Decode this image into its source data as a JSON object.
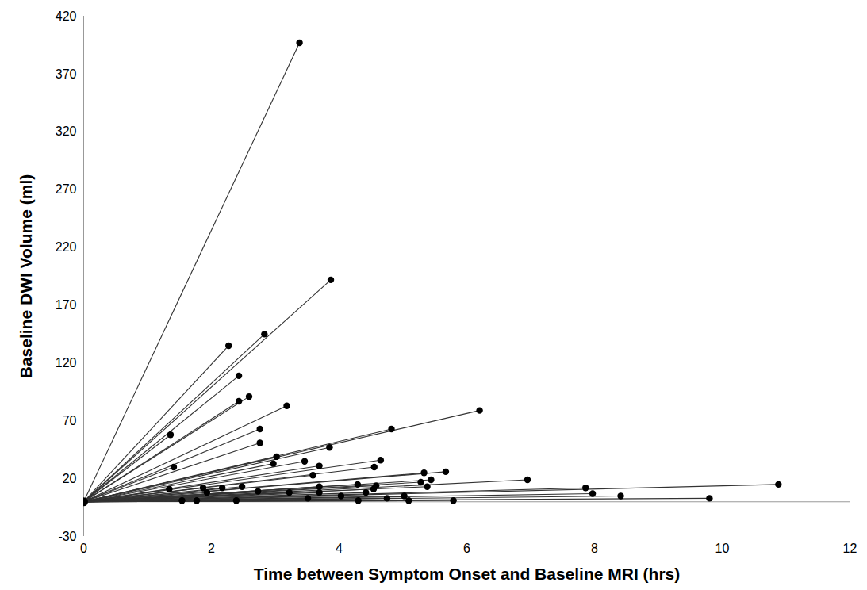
{
  "chart_data": {
    "type": "scatter",
    "x_label": "Time between Symptom Onset and Baseline MRI (hrs)",
    "y_label": "Baseline DWI Volume (ml)",
    "origin": {
      "x": 0,
      "y": 0
    },
    "x": [
      3.38,
      3.87,
      2.83,
      2.27,
      2.43,
      2.43,
      2.59,
      3.18,
      1.36,
      2.76,
      2.76,
      6.2,
      4.82,
      3.85,
      1.41,
      3.02,
      2.97,
      3.46,
      3.69,
      4.65,
      4.55,
      5.33,
      5.67,
      5.44,
      5.28,
      5.38,
      6.95,
      3.59,
      3.69,
      3.69,
      4.29,
      4.58,
      4.54,
      4.42,
      7.86,
      7.97,
      8.41,
      10.88,
      9.8,
      5.79,
      1.34,
      1.87,
      2.17,
      2.48,
      2.73,
      3.22,
      3.51,
      1.54,
      1.77,
      2.39,
      4.03,
      4.3,
      5.02,
      5.09,
      4.75,
      1.93
    ],
    "values": [
      397,
      192,
      145,
      135,
      109,
      87,
      91,
      83,
      58,
      63,
      51,
      79,
      63,
      47,
      30,
      39,
      33,
      35,
      31,
      36,
      30,
      25,
      26,
      19,
      17,
      13,
      19,
      23,
      13,
      8,
      15,
      14,
      11,
      8,
      12,
      7,
      5,
      15,
      3,
      1,
      11,
      12,
      12,
      13,
      9,
      8,
      3,
      1,
      1,
      1,
      5,
      1,
      5,
      1,
      3,
      8
    ],
    "color": "#000000",
    "marker": "circle",
    "line_style": "solid",
    "xlim": [
      0,
      12
    ],
    "xticks": [
      0,
      2,
      4,
      6,
      8,
      10,
      12
    ],
    "ylim": [
      -30,
      420
    ],
    "yticks": [
      -30,
      20,
      70,
      120,
      170,
      220,
      270,
      320,
      370,
      420
    ],
    "grid": false
  }
}
